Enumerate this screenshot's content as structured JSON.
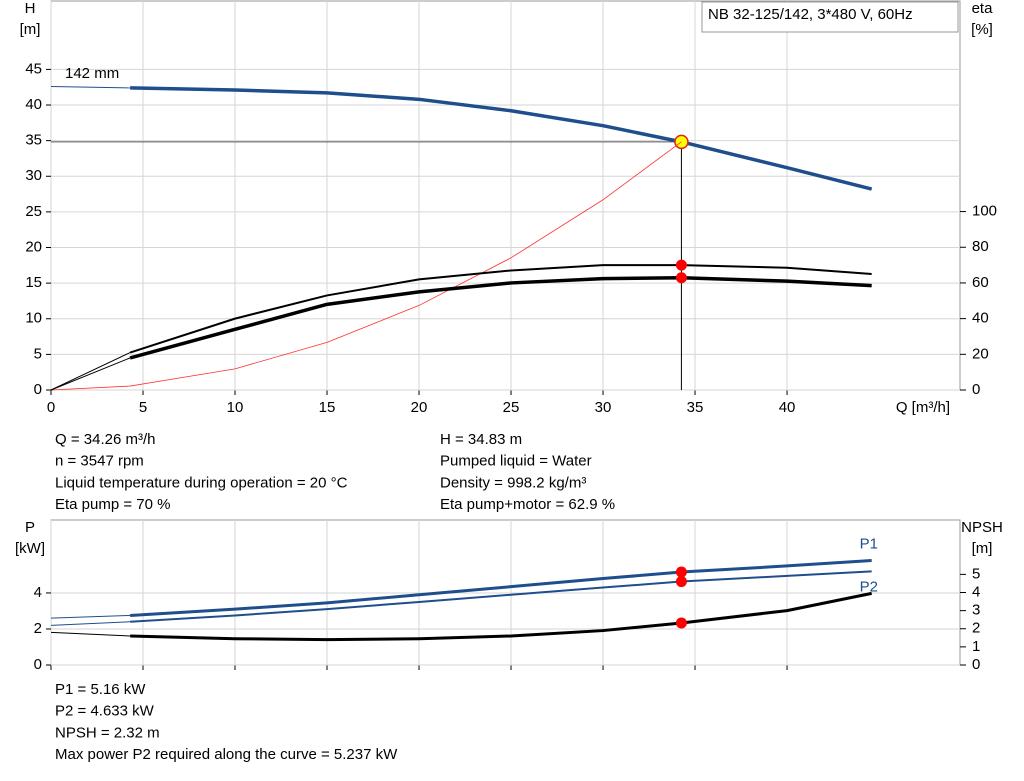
{
  "chart_data": [
    {
      "type": "line",
      "title": "NB 32-125/142, 3*480 V, 60Hz",
      "ylabel": "H",
      "yunit": "[m]",
      "y2label": "eta",
      "y2unit": "[%]",
      "xlabel": "Q [m³/h]",
      "annotation": "142 mm",
      "x": [
        0,
        4.3,
        10,
        15,
        20,
        25,
        30,
        34.26,
        40,
        44.6
      ],
      "xlim": [
        0,
        49.4
      ],
      "xticks": [
        0,
        5,
        10,
        15,
        20,
        25,
        30,
        35,
        40
      ],
      "ylim": [
        0,
        54.6
      ],
      "yticks": [
        0,
        5,
        10,
        15,
        20,
        25,
        30,
        35,
        40,
        45
      ],
      "y2lim": [
        0,
        218
      ],
      "y2ticks": [
        0,
        20,
        40,
        60,
        80,
        100
      ],
      "grid": true,
      "duty_point": {
        "x": 34.26,
        "y": 34.83
      },
      "series": [
        {
          "color": "#1f4e8c",
          "width": 3.5,
          "marker": "#ffff00",
          "values": [
            42.6,
            42.4,
            42.1,
            41.7,
            40.8,
            39.2,
            37.1,
            34.83,
            31.2,
            28.2
          ]
        },
        {
          "color": "#ff3030",
          "width": 0.8,
          "values": [
            0,
            0.55,
            2.97,
            6.68,
            11.87,
            18.55,
            26.7,
            34.83,
            null,
            null
          ]
        },
        {
          "color": "#000000",
          "width": 2,
          "axis": "y2",
          "marker": "#ff0000",
          "values": [
            0,
            21,
            40,
            53,
            62,
            67,
            70,
            70,
            68.5,
            65
          ]
        },
        {
          "color": "#000000",
          "width": 3.5,
          "axis": "y2",
          "marker": "#ff0000",
          "values": [
            0,
            18,
            34,
            48,
            55,
            60,
            62.4,
            62.9,
            61,
            58.5
          ]
        }
      ],
      "info": [
        [
          "Q = 34.26 m³/h",
          "H = 34.83 m"
        ],
        [
          "n = 3547 rpm",
          "Pumped liquid = Water"
        ],
        [
          "Liquid temperature during operation = 20 °C",
          "Density = 998.2 kg/m³"
        ],
        [
          "Eta pump = 70 %",
          "Eta pump+motor = 62.9 %"
        ]
      ]
    },
    {
      "type": "line",
      "ylabel": "P",
      "yunit": "[kW]",
      "y2label": "NPSH",
      "y2unit": "[m]",
      "x": [
        0,
        4.3,
        10,
        15,
        20,
        25,
        30,
        34.26,
        40,
        44.6
      ],
      "xlim": [
        0,
        49.4
      ],
      "xticks": [
        0,
        5,
        10,
        15,
        20,
        25,
        30,
        35,
        40
      ],
      "ylim": [
        0,
        8.05
      ],
      "yticks": [
        0,
        2,
        4
      ],
      "y2lim": [
        0,
        8
      ],
      "y2ticks": [
        0,
        1,
        2,
        3,
        4,
        5
      ],
      "grid": true,
      "duty_point": {
        "x": 34.26
      },
      "series": [
        {
          "name": "P1",
          "color": "#1f4e8c",
          "width": 3,
          "marker": "#ff0000",
          "values": [
            2.6,
            2.75,
            3.1,
            3.45,
            3.9,
            4.35,
            4.8,
            5.16,
            5.5,
            5.8
          ]
        },
        {
          "name": "P2",
          "color": "#1f4e8c",
          "width": 2,
          "marker": "#ff0000",
          "values": [
            2.2,
            2.4,
            2.75,
            3.1,
            3.5,
            3.9,
            4.3,
            4.633,
            4.95,
            5.2
          ]
        },
        {
          "color": "#000000",
          "width": 3,
          "axis": "y2",
          "marker": "#ff0000",
          "values": [
            1.8,
            1.6,
            1.45,
            1.4,
            1.45,
            1.6,
            1.9,
            2.32,
            3.0,
            3.95
          ]
        }
      ],
      "info": [
        "P1 = 5.16 kW",
        "P2 = 4.633 kW",
        "NPSH = 2.32 m",
        "Max power P2 required along the curve = 5.237 kW"
      ]
    }
  ]
}
